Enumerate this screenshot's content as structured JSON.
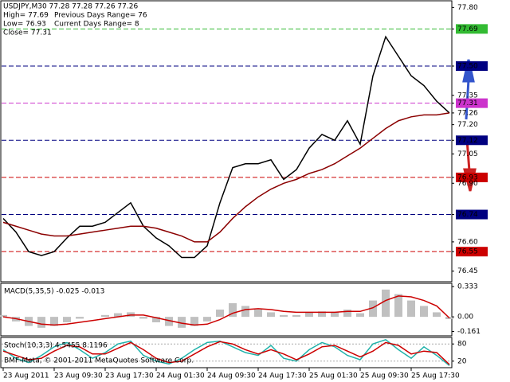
{
  "header": {
    "symbol": "USDJPY,M30  77.28 77.28 77.26 77.26",
    "high": "High= 77.69",
    "prev_range": "Previous Days Range= 76",
    "low": "Low= 76.93",
    "cur_range": "Current Days Range= 8",
    "close": "Close= 77.31"
  },
  "chart_data": [
    {
      "type": "line",
      "categories": [
        "23 Aug 2011",
        null,
        null,
        null,
        "23 Aug 09:30",
        null,
        null,
        null,
        "23 Aug 17:30",
        null,
        null,
        null,
        "24 Aug 01:30",
        null,
        null,
        null,
        "24 Aug 09:30",
        null,
        null,
        null,
        "24 Aug 17:30",
        null,
        null,
        null,
        "25 Aug 01:30",
        null,
        null,
        null,
        "25 Aug 09:30",
        null,
        null,
        null,
        "25 Aug 17:30",
        null,
        null,
        null
      ],
      "series": [
        {
          "name": "Close",
          "color": "#000000",
          "values": [
            76.72,
            76.65,
            76.55,
            76.53,
            76.55,
            76.62,
            76.68,
            76.68,
            76.7,
            76.75,
            76.8,
            76.68,
            76.62,
            76.58,
            76.52,
            76.52,
            76.58,
            76.8,
            76.98,
            77.0,
            77.0,
            77.02,
            76.92,
            76.97,
            77.08,
            77.15,
            77.12,
            77.22,
            77.1,
            77.45,
            77.65,
            77.55,
            77.45,
            77.4,
            77.32,
            77.26
          ]
        },
        {
          "name": "MA",
          "color": "#8b0000",
          "values": [
            76.7,
            76.68,
            76.66,
            76.64,
            76.63,
            76.63,
            76.64,
            76.65,
            76.66,
            76.67,
            76.68,
            76.68,
            76.67,
            76.65,
            76.63,
            76.6,
            76.6,
            76.65,
            76.72,
            76.78,
            76.83,
            76.87,
            76.9,
            76.92,
            76.95,
            76.97,
            77.0,
            77.04,
            77.08,
            77.13,
            77.18,
            77.22,
            77.24,
            77.25,
            77.25,
            77.26
          ]
        }
      ],
      "levels": [
        {
          "value": 77.69,
          "color": "#33bb33"
        },
        {
          "value": 77.5,
          "color": "#000080"
        },
        {
          "value": 77.31,
          "color": "#cc33cc"
        },
        {
          "value": 77.12,
          "color": "#000080"
        },
        {
          "value": 76.93,
          "color": "#cc0000"
        },
        {
          "value": 76.74,
          "color": "#000080"
        },
        {
          "value": 76.55,
          "color": "#cc0000"
        }
      ],
      "ylim": [
        76.4,
        77.83
      ],
      "yticks": [
        {
          "value": 77.8,
          "label": "77.80"
        },
        77.69,
        {
          "value": 77.5,
          "label": "77.50"
        },
        77.35,
        77.31,
        77.26,
        {
          "value": 77.2,
          "label": "77.20"
        },
        77.12,
        77.05,
        76.93,
        {
          "value": 76.9,
          "label": "76.90"
        },
        76.74,
        {
          "value": 76.6,
          "label": "76.60"
        },
        76.55,
        76.45
      ]
    },
    {
      "type": "macd",
      "title": "MACD(5,35,5) -0.025 -0.013",
      "series": [
        {
          "name": "MACD",
          "color": "#c0c0c0",
          "values": [
            0.02,
            -0.05,
            -0.1,
            -0.12,
            -0.1,
            -0.06,
            -0.02,
            0.0,
            0.02,
            0.04,
            0.05,
            -0.02,
            -0.06,
            -0.1,
            -0.12,
            -0.1,
            -0.05,
            0.08,
            0.15,
            0.12,
            0.08,
            0.05,
            0.02,
            0.02,
            0.05,
            0.06,
            0.05,
            0.08,
            0.04,
            0.18,
            0.3,
            0.25,
            0.18,
            0.12,
            0.05,
            -0.025
          ]
        },
        {
          "name": "Signal",
          "color": "#cc0000",
          "values": [
            0.0,
            -0.02,
            -0.05,
            -0.08,
            -0.09,
            -0.08,
            -0.06,
            -0.04,
            -0.02,
            0.0,
            0.02,
            0.02,
            -0.01,
            -0.04,
            -0.07,
            -0.09,
            -0.08,
            -0.03,
            0.04,
            0.08,
            0.09,
            0.08,
            0.06,
            0.05,
            0.05,
            0.05,
            0.05,
            0.06,
            0.06,
            0.1,
            0.18,
            0.23,
            0.22,
            0.18,
            0.12,
            -0.013
          ]
        }
      ],
      "ylim": [
        -0.2,
        0.36
      ],
      "yticks": [
        0.333,
        {
          "value": 0,
          "label": "0.00"
        },
        -0.161
      ]
    },
    {
      "type": "stoch",
      "title": "Stoch(10,3,3) 4.5455 8.1196",
      "annotation": "BMF-Meta, © 2001-2011 MetaQuotes Software Corp.",
      "series": [
        {
          "name": "Main",
          "color": "#20b2aa",
          "values": [
            60,
            30,
            15,
            40,
            70,
            85,
            60,
            30,
            50,
            80,
            90,
            40,
            20,
            10,
            30,
            60,
            85,
            90,
            70,
            50,
            40,
            75,
            30,
            20,
            60,
            85,
            70,
            40,
            25,
            80,
            95,
            60,
            30,
            70,
            40,
            4.5455
          ]
        },
        {
          "name": "Signal",
          "color": "#cc0000",
          "values": [
            55,
            40,
            25,
            30,
            55,
            75,
            70,
            45,
            45,
            65,
            85,
            60,
            30,
            15,
            20,
            45,
            70,
            88,
            80,
            60,
            45,
            60,
            45,
            25,
            45,
            70,
            75,
            55,
            35,
            55,
            85,
            75,
            45,
            55,
            50,
            8.1196
          ]
        }
      ],
      "ylim": [
        0,
        100
      ],
      "yticks": [
        80,
        20
      ]
    }
  ]
}
